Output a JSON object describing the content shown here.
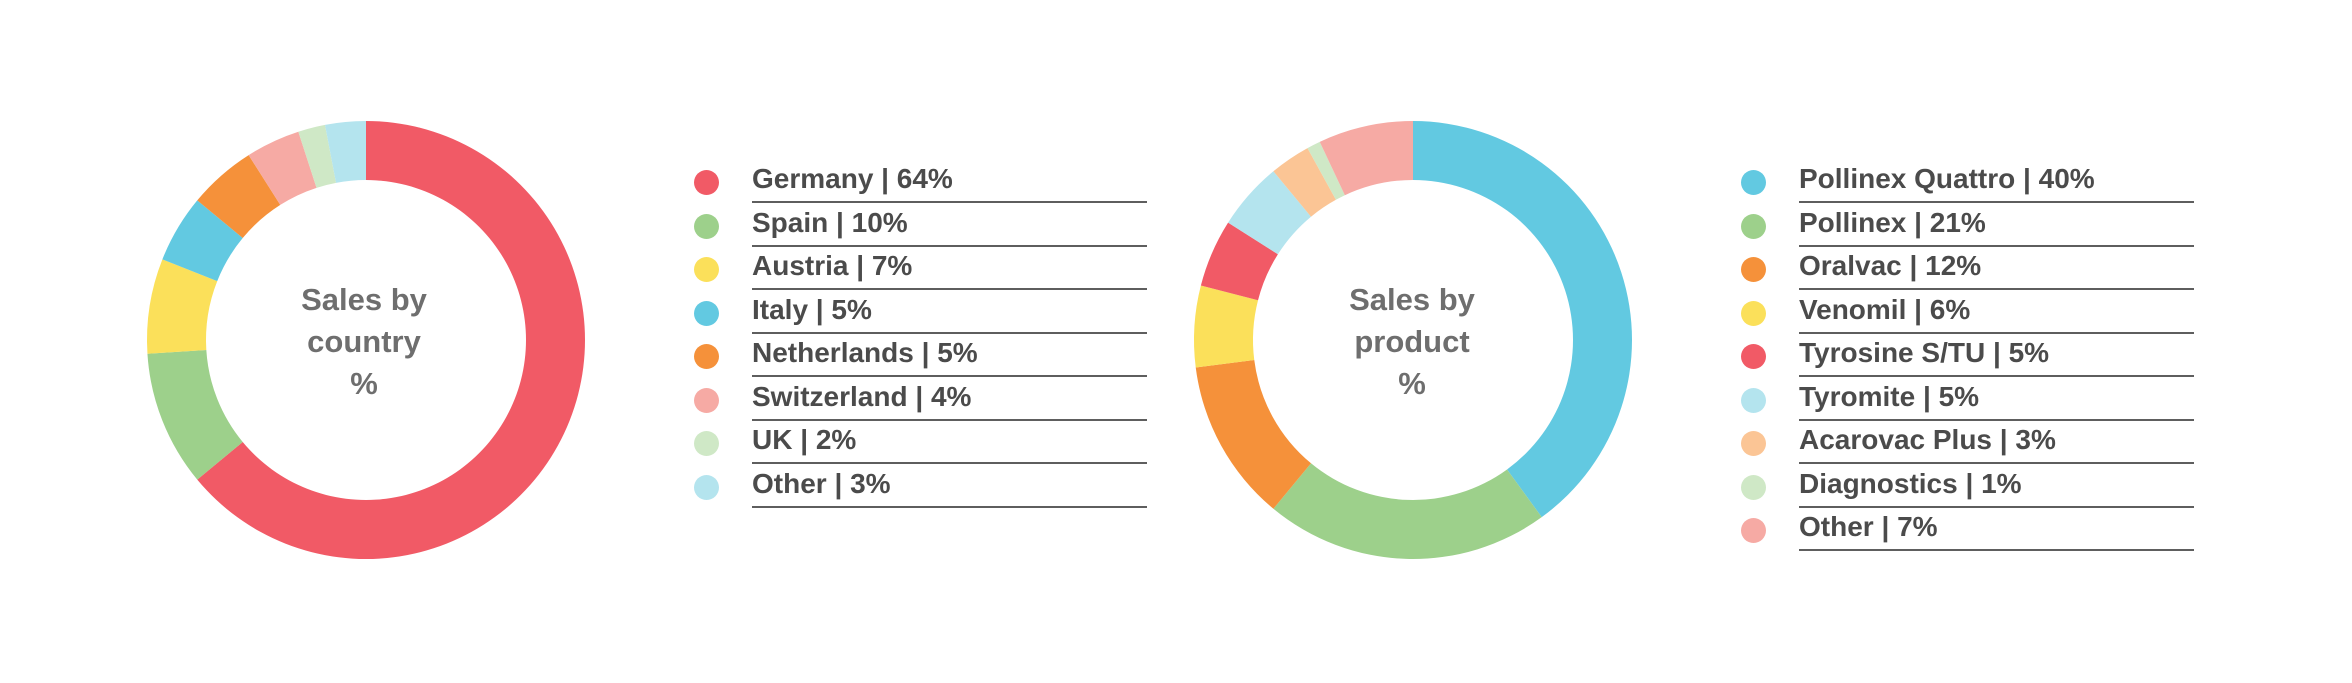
{
  "chart_data": [
    {
      "type": "pie",
      "title_lines": [
        "Sales by",
        "country",
        "%"
      ],
      "slices": [
        {
          "label": "Germany | 64%",
          "value": 64,
          "color": "#f15a66"
        },
        {
          "label": "Spain | 10%",
          "value": 10,
          "color": "#9dd08b"
        },
        {
          "label": "Austria | 7%",
          "value": 7,
          "color": "#fbe05a"
        },
        {
          "label": "Italy | 5%",
          "value": 5,
          "color": "#62c9e1"
        },
        {
          "label": "Netherlands | 5%",
          "value": 5,
          "color": "#f5913a"
        },
        {
          "label": "Switzerland | 4%",
          "value": 4,
          "color": "#f6aaa4"
        },
        {
          "label": "UK | 2%",
          "value": 2,
          "color": "#cfe8c6"
        },
        {
          "label": "Other | 3%",
          "value": 3,
          "color": "#b4e4ee"
        }
      ]
    },
    {
      "type": "pie",
      "title_lines": [
        "Sales by",
        "product",
        "%"
      ],
      "slices": [
        {
          "label": "Pollinex Quattro | 40%",
          "value": 40,
          "color": "#62c9e1"
        },
        {
          "label": "Pollinex | 21%",
          "value": 21,
          "color": "#9dd08b"
        },
        {
          "label": "Oralvac | 12%",
          "value": 12,
          "color": "#f5913a"
        },
        {
          "label": "Venomil | 6%",
          "value": 6,
          "color": "#fbe05a"
        },
        {
          "label": "Tyrosine S/TU | 5%",
          "value": 5,
          "color": "#f15a66"
        },
        {
          "label": "Tyromite | 5%",
          "value": 5,
          "color": "#b4e4ee"
        },
        {
          "label": "Acarovac Plus | 3%",
          "value": 3,
          "color": "#fbc595"
        },
        {
          "label": "Diagnostics | 1%",
          "value": 1,
          "color": "#cfe8c6"
        },
        {
          "label": "Other | 7%",
          "value": 7,
          "color": "#f6aaa4"
        }
      ]
    }
  ]
}
